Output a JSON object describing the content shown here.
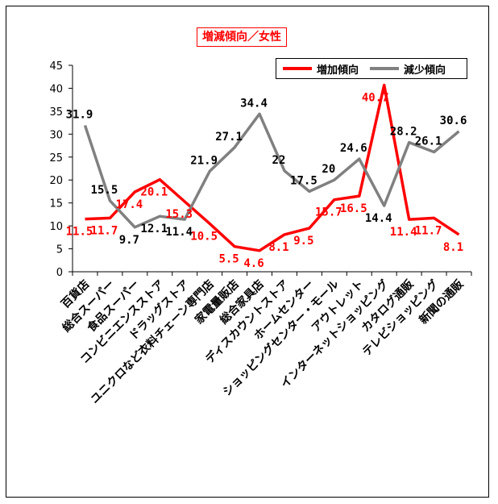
{
  "chart_data": {
    "type": "line",
    "title": "増減傾向／女性",
    "categories": [
      "百貨店",
      "総合スーパー",
      "食品スーパー",
      "コンビニエンスストア",
      "ドラッグストア",
      "ユニクロなど衣料チェーン専門店",
      "家電量販店",
      "総合家具店",
      "ディスカウントストア",
      "ホームセンター",
      "ショッピングセンター・モール",
      "アウトレット",
      "インターネットショッピング",
      "カタログ通販",
      "テレビショッピング",
      "新聞の通販"
    ],
    "series": [
      {
        "name": "増加傾向",
        "color": "#ff0000",
        "values": [
          11.5,
          11.7,
          17.4,
          20.1,
          15.3,
          10.5,
          5.5,
          4.6,
          8.1,
          9.5,
          15.7,
          16.5,
          40.7,
          11.4,
          11.7,
          8.1
        ]
      },
      {
        "name": "減少傾向",
        "color": "#808080",
        "values": [
          31.9,
          15.5,
          9.7,
          12.1,
          11.4,
          21.9,
          27.1,
          34.4,
          22,
          17.5,
          20,
          24.6,
          14.4,
          28.2,
          26.1,
          30.6
        ]
      }
    ],
    "ylim": [
      0,
      45
    ],
    "yticks": [
      0,
      5,
      10,
      15,
      20,
      25,
      30,
      35,
      40,
      45
    ],
    "grid": false,
    "legend": "top-right"
  }
}
